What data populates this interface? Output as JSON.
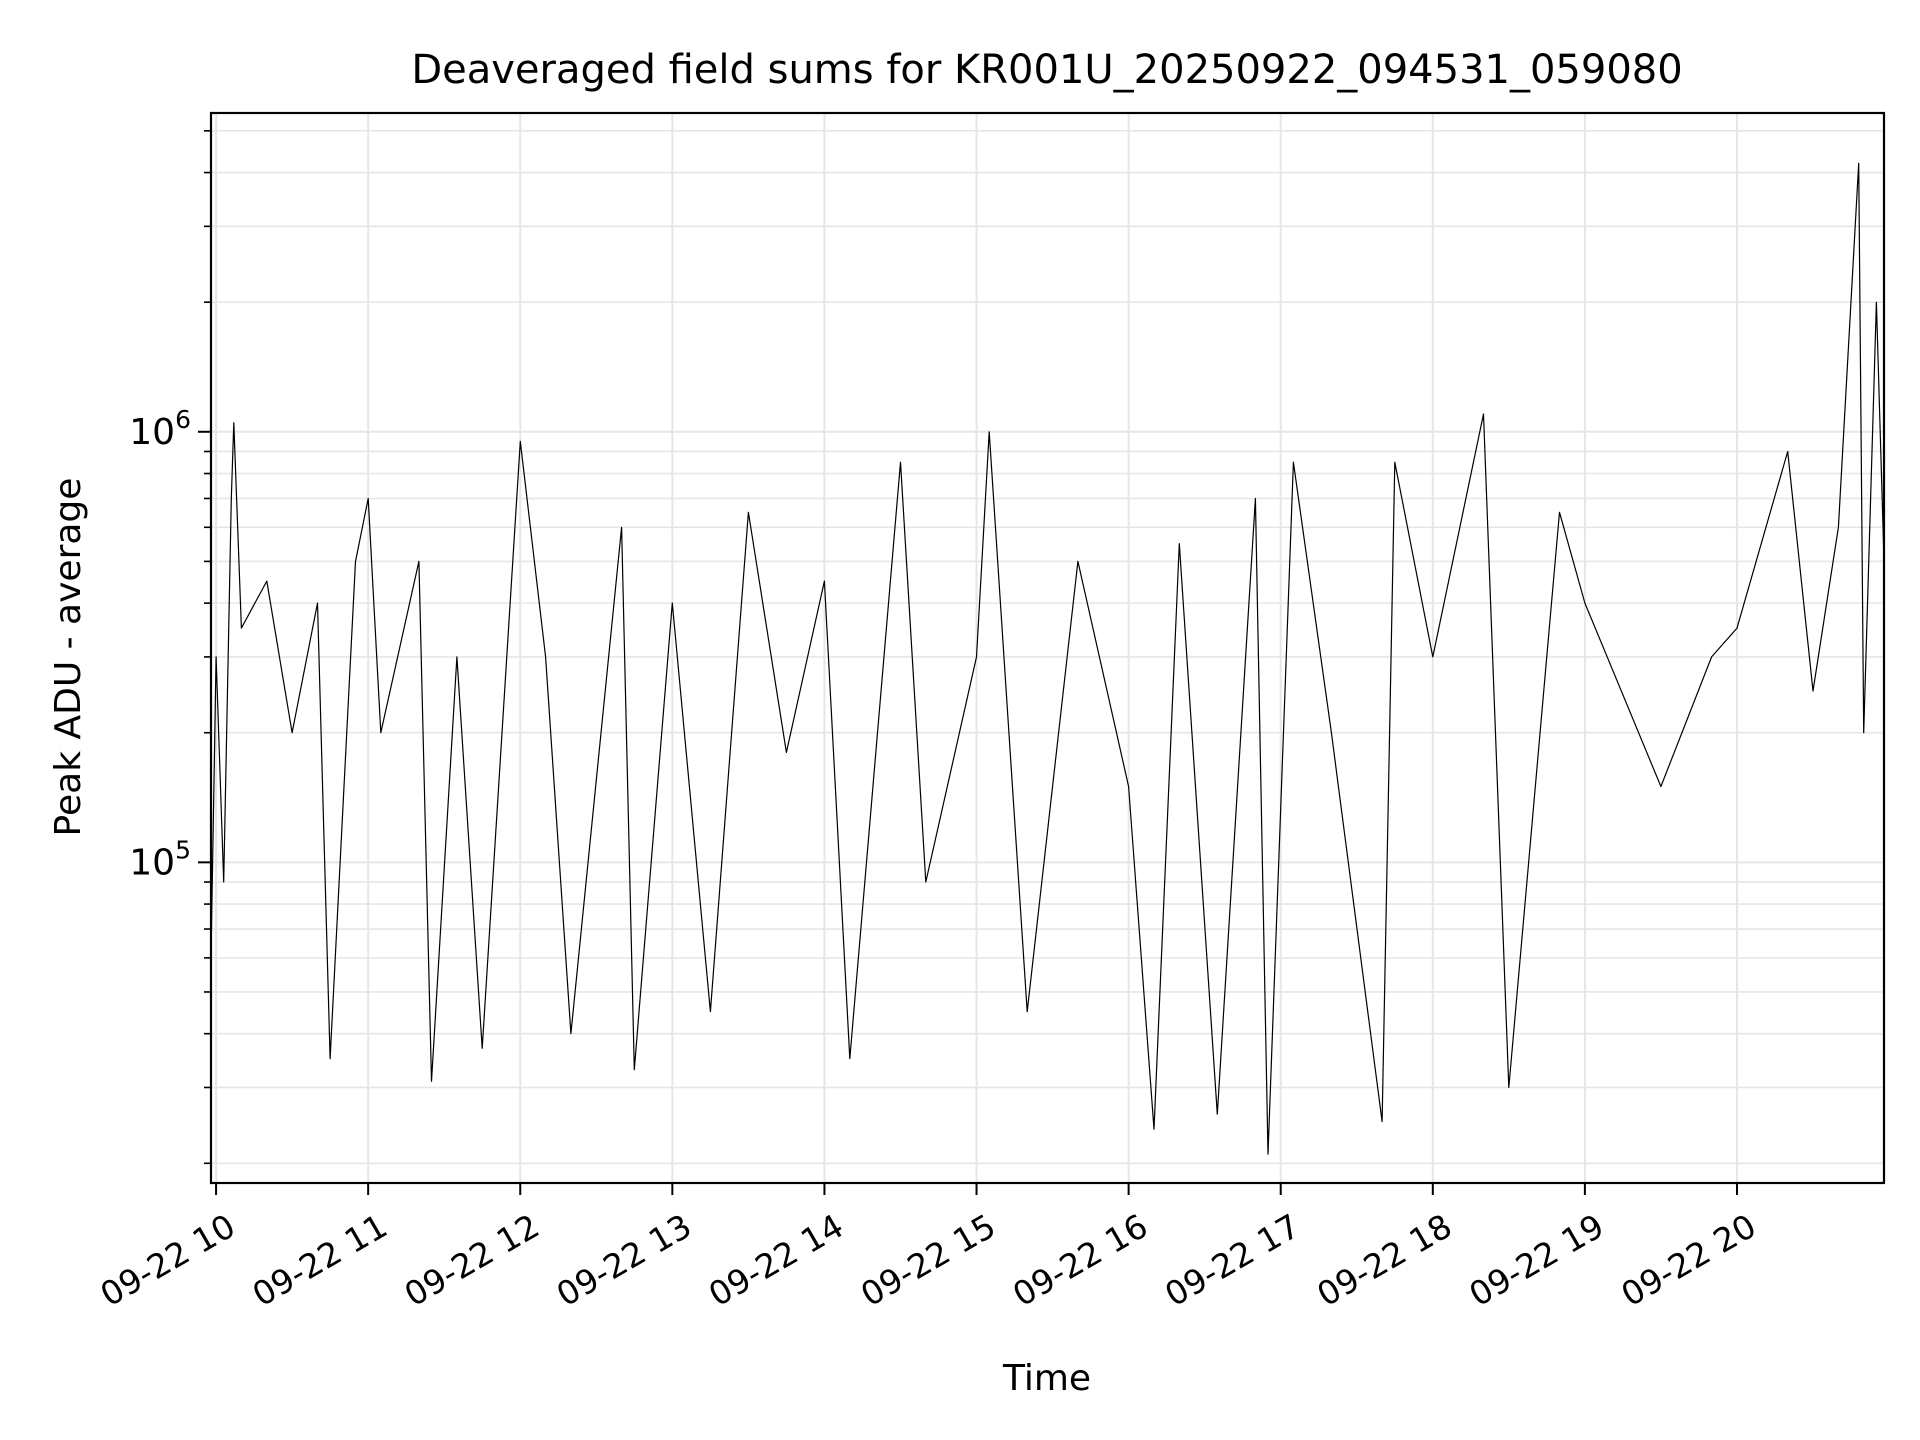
{
  "chart_data": {
    "type": "line",
    "title": "Deaveraged field sums for KR001U_20250922_094531_059080",
    "xlabel": "Time",
    "ylabel": "Peak ADU - average",
    "y_scale": "log",
    "ylim": [
      18000,
      5500000
    ],
    "x_range": [
      "2025-09-22 09:58",
      "2025-09-22 20:58"
    ],
    "x_ticks": [
      {
        "time": "2025-09-22 10:00",
        "label": "09-22 10"
      },
      {
        "time": "2025-09-22 11:00",
        "label": "09-22 11"
      },
      {
        "time": "2025-09-22 12:00",
        "label": "09-22 12"
      },
      {
        "time": "2025-09-22 13:00",
        "label": "09-22 13"
      },
      {
        "time": "2025-09-22 14:00",
        "label": "09-22 14"
      },
      {
        "time": "2025-09-22 15:00",
        "label": "09-22 15"
      },
      {
        "time": "2025-09-22 16:00",
        "label": "09-22 16"
      },
      {
        "time": "2025-09-22 17:00",
        "label": "09-22 17"
      },
      {
        "time": "2025-09-22 18:00",
        "label": "09-22 18"
      },
      {
        "time": "2025-09-22 19:00",
        "label": "09-22 19"
      },
      {
        "time": "2025-09-22 20:00",
        "label": "09-22 20"
      }
    ],
    "y_ticks": [
      {
        "value": 100000,
        "base": "10",
        "exp": "5"
      },
      {
        "value": 1000000,
        "base": "10",
        "exp": "6"
      }
    ],
    "grid": true,
    "line_color": "#000000",
    "grid_color": "#e6e6e6",
    "series": [
      {
        "points": [
          [
            "2025-09-22 09:58",
            60000
          ],
          [
            "2025-09-22 10:00",
            300000
          ],
          [
            "2025-09-22 10:03",
            90000
          ],
          [
            "2025-09-22 10:06",
            700000
          ],
          [
            "2025-09-22 10:07",
            1050000
          ],
          [
            "2025-09-22 10:10",
            350000
          ],
          [
            "2025-09-22 10:20",
            450000
          ],
          [
            "2025-09-22 10:30",
            200000
          ],
          [
            "2025-09-22 10:40",
            400000
          ],
          [
            "2025-09-22 10:45",
            35000
          ],
          [
            "2025-09-22 10:55",
            500000
          ],
          [
            "2025-09-22 11:00",
            700000
          ],
          [
            "2025-09-22 11:05",
            200000
          ],
          [
            "2025-09-22 11:20",
            500000
          ],
          [
            "2025-09-22 11:25",
            31000
          ],
          [
            "2025-09-22 11:35",
            300000
          ],
          [
            "2025-09-22 11:45",
            37000
          ],
          [
            "2025-09-22 12:00",
            950000
          ],
          [
            "2025-09-22 12:10",
            300000
          ],
          [
            "2025-09-22 12:20",
            40000
          ],
          [
            "2025-09-22 12:40",
            600000
          ],
          [
            "2025-09-22 12:45",
            33000
          ],
          [
            "2025-09-22 13:00",
            400000
          ],
          [
            "2025-09-22 13:15",
            45000
          ],
          [
            "2025-09-22 13:30",
            650000
          ],
          [
            "2025-09-22 13:45",
            180000
          ],
          [
            "2025-09-22 14:00",
            450000
          ],
          [
            "2025-09-22 14:10",
            35000
          ],
          [
            "2025-09-22 14:30",
            850000
          ],
          [
            "2025-09-22 14:40",
            90000
          ],
          [
            "2025-09-22 15:00",
            300000
          ],
          [
            "2025-09-22 15:05",
            1000000
          ],
          [
            "2025-09-22 15:20",
            45000
          ],
          [
            "2025-09-22 15:40",
            500000
          ],
          [
            "2025-09-22 16:00",
            150000
          ],
          [
            "2025-09-22 16:10",
            24000
          ],
          [
            "2025-09-22 16:20",
            550000
          ],
          [
            "2025-09-22 16:35",
            26000
          ],
          [
            "2025-09-22 16:50",
            700000
          ],
          [
            "2025-09-22 16:55",
            21000
          ],
          [
            "2025-09-22 17:05",
            850000
          ],
          [
            "2025-09-22 17:20",
            200000
          ],
          [
            "2025-09-22 17:40",
            25000
          ],
          [
            "2025-09-22 17:45",
            850000
          ],
          [
            "2025-09-22 18:00",
            300000
          ],
          [
            "2025-09-22 18:20",
            1100000
          ],
          [
            "2025-09-22 18:30",
            30000
          ],
          [
            "2025-09-22 18:50",
            650000
          ],
          [
            "2025-09-22 19:00",
            400000
          ],
          [
            "2025-09-22 19:30",
            150000
          ],
          [
            "2025-09-22 19:50",
            300000
          ],
          [
            "2025-09-22 20:00",
            350000
          ],
          [
            "2025-09-22 20:20",
            900000
          ],
          [
            "2025-09-22 20:30",
            250000
          ],
          [
            "2025-09-22 20:40",
            600000
          ],
          [
            "2025-09-22 20:48",
            4200000
          ],
          [
            "2025-09-22 20:50",
            200000
          ],
          [
            "2025-09-22 20:55",
            2000000
          ],
          [
            "2025-09-22 20:58",
            500000
          ]
        ]
      }
    ]
  }
}
